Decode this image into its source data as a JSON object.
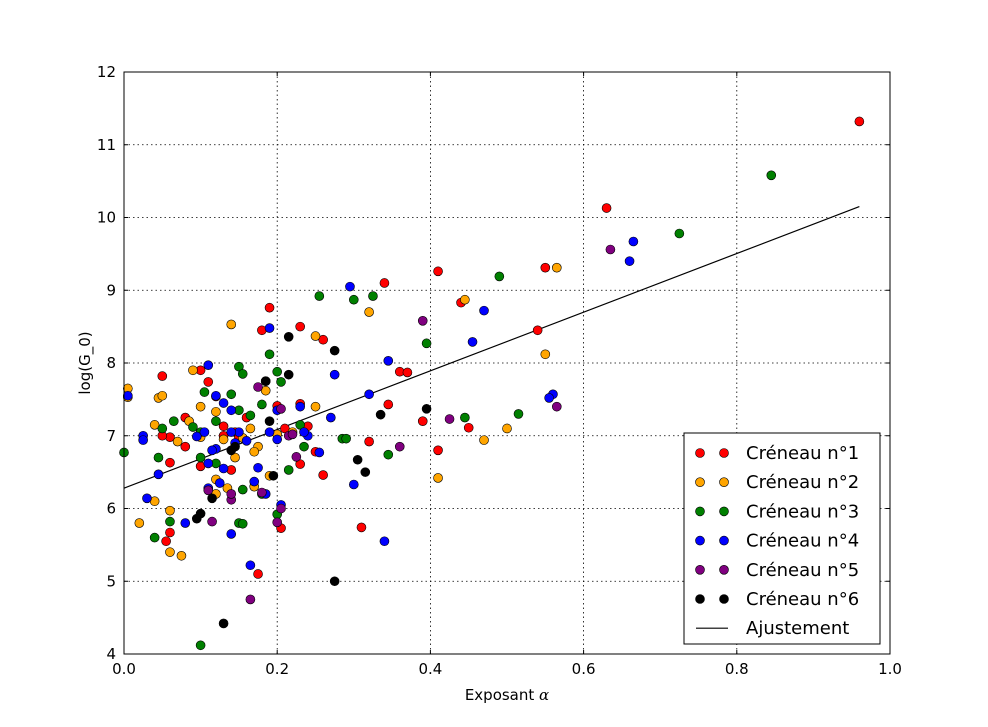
{
  "chart_data": {
    "type": "scatter",
    "xlabel": "Exposant",
    "xlabel_symbol": "α",
    "ylabel": "log(G_0)",
    "xlim": [
      0.0,
      1.0
    ],
    "ylim": [
      4,
      12
    ],
    "grid": true,
    "legend_position": "bottom-right",
    "xticks": [
      "0.0",
      "0.2",
      "0.4",
      "0.6",
      "0.8",
      "1.0"
    ],
    "yticks": [
      "4",
      "5",
      "6",
      "7",
      "8",
      "9",
      "10",
      "11",
      "12"
    ],
    "series": [
      {
        "name": "Créneau n°1",
        "color": "#ff0000",
        "points": [
          [
            0.96,
            11.32
          ],
          [
            0.63,
            10.13
          ],
          [
            0.55,
            9.31
          ],
          [
            0.54,
            8.45
          ],
          [
            0.41,
            9.26
          ],
          [
            0.44,
            8.83
          ],
          [
            0.34,
            9.1
          ],
          [
            0.36,
            7.88
          ],
          [
            0.37,
            7.87
          ],
          [
            0.345,
            7.43
          ],
          [
            0.39,
            7.2
          ],
          [
            0.41,
            6.8
          ],
          [
            0.45,
            7.11
          ],
          [
            0.32,
            6.92
          ],
          [
            0.31,
            5.74
          ],
          [
            0.23,
            8.5
          ],
          [
            0.26,
            8.32
          ],
          [
            0.19,
            8.76
          ],
          [
            0.18,
            8.45
          ],
          [
            0.185,
            7.75
          ],
          [
            0.2,
            7.41
          ],
          [
            0.23,
            7.44
          ],
          [
            0.24,
            7.13
          ],
          [
            0.26,
            6.46
          ],
          [
            0.23,
            6.61
          ],
          [
            0.205,
            5.73
          ],
          [
            0.175,
            5.1
          ],
          [
            0.14,
            6.53
          ],
          [
            0.13,
            7.13
          ],
          [
            0.12,
            7.54
          ],
          [
            0.11,
            7.74
          ],
          [
            0.1,
            7.9
          ],
          [
            0.08,
            7.25
          ],
          [
            0.08,
            6.85
          ],
          [
            0.06,
            6.98
          ],
          [
            0.05,
            7.0
          ],
          [
            0.06,
            6.63
          ],
          [
            0.06,
            5.67
          ],
          [
            0.055,
            5.55
          ],
          [
            0.05,
            7.82
          ],
          [
            0.1,
            6.58
          ],
          [
            0.13,
            7.0
          ],
          [
            0.145,
            7.05
          ],
          [
            0.16,
            7.25
          ],
          [
            0.15,
            6.98
          ],
          [
            0.25,
            6.78
          ],
          [
            0.21,
            7.1
          ]
        ]
      },
      {
        "name": "Créneau n°2",
        "color": "#ffa500",
        "points": [
          [
            0.565,
            9.31
          ],
          [
            0.55,
            8.12
          ],
          [
            0.445,
            8.87
          ],
          [
            0.47,
            6.94
          ],
          [
            0.5,
            7.1
          ],
          [
            0.41,
            6.42
          ],
          [
            0.32,
            8.7
          ],
          [
            0.25,
            8.37
          ],
          [
            0.25,
            7.4
          ],
          [
            0.22,
            7.05
          ],
          [
            0.2,
            7.02
          ],
          [
            0.185,
            7.62
          ],
          [
            0.175,
            6.85
          ],
          [
            0.14,
            8.53
          ],
          [
            0.12,
            7.33
          ],
          [
            0.1,
            7.4
          ],
          [
            0.09,
            7.9
          ],
          [
            0.085,
            7.2
          ],
          [
            0.1,
            6.98
          ],
          [
            0.07,
            6.92
          ],
          [
            0.045,
            7.52
          ],
          [
            0.05,
            7.55
          ],
          [
            0.04,
            7.15
          ],
          [
            0.005,
            7.65
          ],
          [
            0.005,
            7.53
          ],
          [
            0.02,
            5.8
          ],
          [
            0.04,
            6.1
          ],
          [
            0.06,
            5.97
          ],
          [
            0.06,
            5.4
          ],
          [
            0.075,
            5.35
          ],
          [
            0.12,
            6.2
          ],
          [
            0.12,
            6.4
          ],
          [
            0.135,
            6.28
          ],
          [
            0.145,
            6.7
          ],
          [
            0.155,
            6.97
          ],
          [
            0.165,
            7.1
          ],
          [
            0.17,
            6.78
          ],
          [
            0.19,
            6.45
          ],
          [
            0.17,
            6.3
          ],
          [
            0.13,
            6.95
          ]
        ]
      },
      {
        "name": "Créneau n°3",
        "color": "#008000",
        "points": [
          [
            0.845,
            10.58
          ],
          [
            0.725,
            9.78
          ],
          [
            0.49,
            9.19
          ],
          [
            0.515,
            7.3
          ],
          [
            0.445,
            7.25
          ],
          [
            0.395,
            8.27
          ],
          [
            0.325,
            8.92
          ],
          [
            0.3,
            8.87
          ],
          [
            0.255,
            8.92
          ],
          [
            0.345,
            6.74
          ],
          [
            0.285,
            6.96
          ],
          [
            0.29,
            6.96
          ],
          [
            0.23,
            7.15
          ],
          [
            0.235,
            6.85
          ],
          [
            0.215,
            6.53
          ],
          [
            0.2,
            5.92
          ],
          [
            0.2,
            7.88
          ],
          [
            0.205,
            7.74
          ],
          [
            0.19,
            8.12
          ],
          [
            0.18,
            7.43
          ],
          [
            0.165,
            7.28
          ],
          [
            0.15,
            7.95
          ],
          [
            0.155,
            7.85
          ],
          [
            0.14,
            7.57
          ],
          [
            0.15,
            7.35
          ],
          [
            0.12,
            7.2
          ],
          [
            0.12,
            6.62
          ],
          [
            0.105,
            7.6
          ],
          [
            0.1,
            7.05
          ],
          [
            0.1,
            6.7
          ],
          [
            0.09,
            7.12
          ],
          [
            0.065,
            7.2
          ],
          [
            0.05,
            7.1
          ],
          [
            0.045,
            6.7
          ],
          [
            0.06,
            5.82
          ],
          [
            0.04,
            5.6
          ],
          [
            0.0,
            6.77
          ],
          [
            0.15,
            5.8
          ],
          [
            0.155,
            5.79
          ],
          [
            0.155,
            6.26
          ],
          [
            0.18,
            6.2
          ],
          [
            0.1,
            4.12
          ]
        ]
      },
      {
        "name": "Créneau n°4",
        "color": "#0000ff",
        "points": [
          [
            0.665,
            9.67
          ],
          [
            0.66,
            9.4
          ],
          [
            0.56,
            7.57
          ],
          [
            0.555,
            7.52
          ],
          [
            0.47,
            8.72
          ],
          [
            0.455,
            8.29
          ],
          [
            0.345,
            8.03
          ],
          [
            0.295,
            9.05
          ],
          [
            0.275,
            7.84
          ],
          [
            0.27,
            7.25
          ],
          [
            0.24,
            7.0
          ],
          [
            0.255,
            6.77
          ],
          [
            0.23,
            7.4
          ],
          [
            0.235,
            7.05
          ],
          [
            0.205,
            6.05
          ],
          [
            0.19,
            7.05
          ],
          [
            0.185,
            6.2
          ],
          [
            0.175,
            6.56
          ],
          [
            0.165,
            5.22
          ],
          [
            0.14,
            5.65
          ],
          [
            0.3,
            6.33
          ],
          [
            0.32,
            7.57
          ],
          [
            0.34,
            5.55
          ],
          [
            0.2,
            7.35
          ],
          [
            0.19,
            8.48
          ],
          [
            0.15,
            7.05
          ],
          [
            0.14,
            7.35
          ],
          [
            0.13,
            7.45
          ],
          [
            0.12,
            7.55
          ],
          [
            0.11,
            7.97
          ],
          [
            0.105,
            7.05
          ],
          [
            0.12,
            6.82
          ],
          [
            0.11,
            6.62
          ],
          [
            0.095,
            6.99
          ],
          [
            0.08,
            5.8
          ],
          [
            0.045,
            6.47
          ],
          [
            0.03,
            6.14
          ],
          [
            0.025,
            7.0
          ],
          [
            0.025,
            6.94
          ],
          [
            0.005,
            7.55
          ],
          [
            0.11,
            6.28
          ],
          [
            0.125,
            6.35
          ],
          [
            0.14,
            7.05
          ],
          [
            0.145,
            6.9
          ],
          [
            0.16,
            6.93
          ],
          [
            0.17,
            6.37
          ],
          [
            0.2,
            6.95
          ],
          [
            0.13,
            6.55
          ],
          [
            0.115,
            6.8
          ]
        ]
      },
      {
        "name": "Créneau n°5",
        "color": "#800080",
        "points": [
          [
            0.635,
            9.56
          ],
          [
            0.565,
            7.4
          ],
          [
            0.39,
            8.58
          ],
          [
            0.425,
            7.23
          ],
          [
            0.36,
            6.85
          ],
          [
            0.225,
            6.71
          ],
          [
            0.215,
            7.0
          ],
          [
            0.22,
            7.02
          ],
          [
            0.205,
            6.0
          ],
          [
            0.2,
            5.81
          ],
          [
            0.18,
            6.22
          ],
          [
            0.165,
            4.75
          ],
          [
            0.14,
            6.12
          ],
          [
            0.115,
            5.82
          ],
          [
            0.11,
            6.25
          ],
          [
            0.14,
            6.2
          ],
          [
            0.205,
            7.37
          ],
          [
            0.175,
            7.67
          ]
        ]
      },
      {
        "name": "Créneau n°6",
        "color": "#000000",
        "points": [
          [
            0.215,
            8.36
          ],
          [
            0.275,
            8.17
          ],
          [
            0.215,
            7.84
          ],
          [
            0.185,
            7.75
          ],
          [
            0.395,
            7.37
          ],
          [
            0.335,
            7.29
          ],
          [
            0.305,
            6.67
          ],
          [
            0.315,
            6.5
          ],
          [
            0.275,
            5.0
          ],
          [
            0.195,
            6.45
          ],
          [
            0.14,
            6.8
          ],
          [
            0.145,
            6.85
          ],
          [
            0.115,
            6.14
          ],
          [
            0.1,
            5.93
          ],
          [
            0.095,
            5.86
          ],
          [
            0.13,
            4.42
          ],
          [
            0.19,
            7.2
          ]
        ]
      }
    ],
    "fit": {
      "name": "Ajustement",
      "color": "#000000",
      "points": [
        [
          0.0,
          6.28
        ],
        [
          0.96,
          10.15
        ]
      ]
    }
  }
}
